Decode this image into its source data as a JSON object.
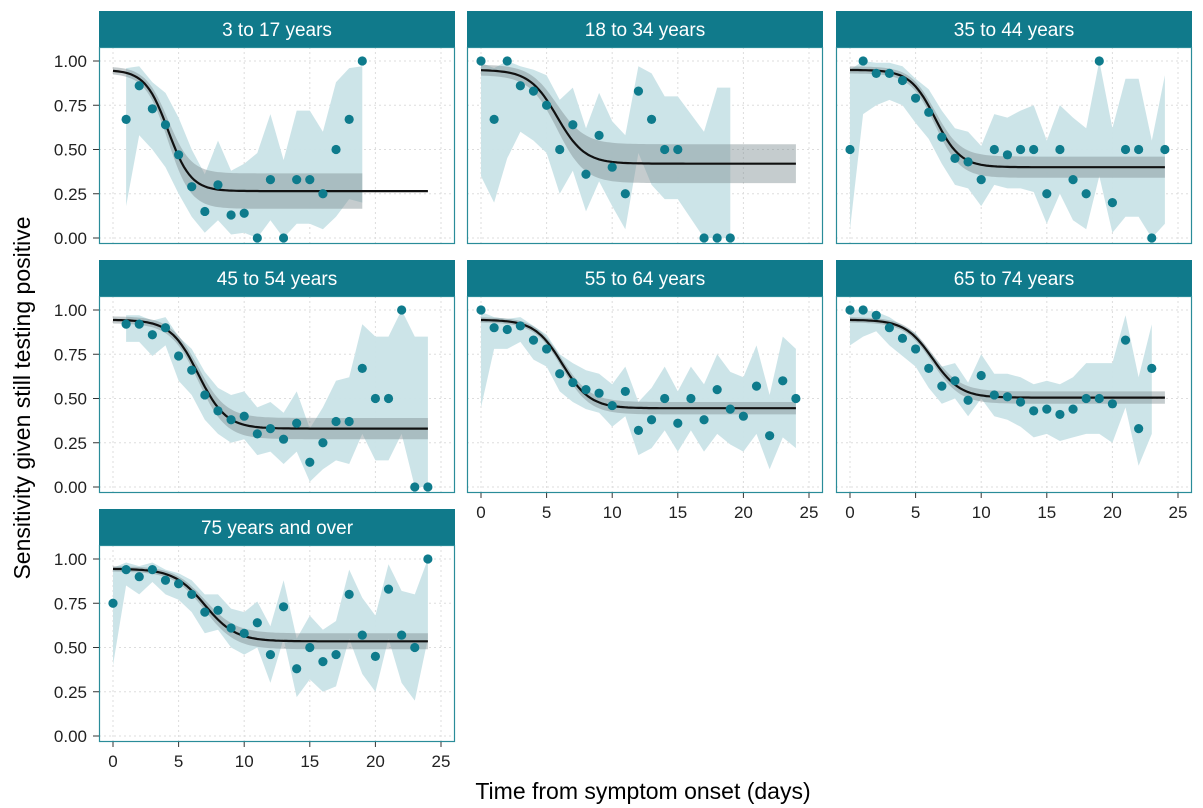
{
  "chart_data": {
    "type": "scatter",
    "title": "",
    "xlabel": "Time from symptom onset (days)",
    "ylabel": "Sensitivity given still testing positive",
    "xlim": [
      0,
      25
    ],
    "ylim": [
      0,
      1
    ],
    "x_ticks": [
      "0",
      "5",
      "10",
      "15",
      "20",
      "25"
    ],
    "y_ticks": [
      "0.00",
      "0.25",
      "0.50",
      "0.75",
      "1.00"
    ],
    "grid": true,
    "colors": {
      "points": "#0e7b8c",
      "band": "#c9e3e7",
      "fit_ci": "#7f8f92",
      "line": "#111111",
      "strip_fill": "#107a8b",
      "panel_border": "#2a8c99",
      "grid": "#dddddd"
    },
    "panels": [
      {
        "label": "3 to 17 years",
        "x": [
          1,
          2,
          3,
          4,
          5,
          6,
          7,
          8,
          9,
          10,
          11,
          12,
          13,
          14,
          15,
          16,
          17,
          18,
          19
        ],
        "y": [
          0.67,
          0.86,
          0.73,
          0.64,
          0.47,
          0.29,
          0.15,
          0.3,
          0.13,
          0.14,
          0,
          0.33,
          0,
          0.33,
          0.33,
          0.25,
          0.5,
          0.67,
          1.0
        ],
        "band_low": [
          0.18,
          0.58,
          0.5,
          0.4,
          0.25,
          0.12,
          0.03,
          0.1,
          0.02,
          0.03,
          0,
          0.1,
          0,
          0.08,
          0.08,
          0.05,
          0.12,
          0.22,
          0.2
        ],
        "band_high": [
          0.96,
          0.97,
          0.88,
          0.82,
          0.68,
          0.5,
          0.36,
          0.55,
          0.38,
          0.42,
          0.48,
          0.7,
          0.44,
          0.72,
          0.72,
          0.6,
          0.88,
          0.96,
          0.97
        ],
        "fit": {
          "upper": 0.95,
          "lower": 0.265,
          "midpoint": 4.2,
          "steepness": 1.15,
          "x_end": 24
        },
        "fit_ci": {
          "upper_hw": 0.02,
          "lower_hw": 0.1,
          "x_end": 19
        }
      },
      {
        "label": "18 to 34 years",
        "x": [
          0,
          1,
          2,
          3,
          4,
          5,
          6,
          7,
          8,
          9,
          10,
          11,
          12,
          13,
          14,
          15,
          17,
          18,
          19
        ],
        "y": [
          1.0,
          0.67,
          1.0,
          0.86,
          0.83,
          0.75,
          0.5,
          0.64,
          0.36,
          0.58,
          0.4,
          0.25,
          0.83,
          0.67,
          0.5,
          0.5,
          0,
          0,
          0
        ],
        "band_low": [
          0.35,
          0.2,
          0.45,
          0.6,
          0.55,
          0.48,
          0.25,
          0.38,
          0.15,
          0.32,
          0.18,
          0.05,
          0.48,
          0.3,
          0.22,
          0.22,
          0,
          0,
          0
        ],
        "band_high": [
          0.99,
          0.96,
          1.0,
          0.97,
          0.95,
          0.92,
          0.78,
          0.85,
          0.62,
          0.82,
          0.66,
          0.58,
          0.97,
          0.93,
          0.8,
          0.8,
          0.6,
          0.85,
          0.85
        ],
        "fit": {
          "upper": 0.95,
          "lower": 0.42,
          "midpoint": 5.8,
          "steepness": 0.95,
          "x_end": 24
        },
        "fit_ci": {
          "upper_hw": 0.03,
          "lower_hw": 0.11,
          "x_end": 24
        }
      },
      {
        "label": "35 to 44 years",
        "x": [
          0,
          1,
          2,
          3,
          4,
          5,
          6,
          7,
          8,
          9,
          10,
          11,
          12,
          13,
          14,
          15,
          16,
          17,
          18,
          19,
          20,
          21,
          22,
          23,
          24
        ],
        "y": [
          0.5,
          1.0,
          0.93,
          0.93,
          0.89,
          0.79,
          0.71,
          0.57,
          0.45,
          0.43,
          0.33,
          0.5,
          0.47,
          0.5,
          0.5,
          0.25,
          0.5,
          0.33,
          0.25,
          1.0,
          0.2,
          0.5,
          0.5,
          0,
          0.5
        ],
        "band_low": [
          0.05,
          0.7,
          0.75,
          0.78,
          0.75,
          0.65,
          0.56,
          0.42,
          0.3,
          0.28,
          0.18,
          0.3,
          0.28,
          0.28,
          0.26,
          0.08,
          0.25,
          0.1,
          0.05,
          0.35,
          0.03,
          0.12,
          0.12,
          0,
          0.08
        ],
        "band_high": [
          0.95,
          1.0,
          0.99,
          0.99,
          0.97,
          0.9,
          0.84,
          0.72,
          0.62,
          0.6,
          0.52,
          0.7,
          0.68,
          0.72,
          0.75,
          0.55,
          0.75,
          0.68,
          0.62,
          1.0,
          0.62,
          0.9,
          0.9,
          0.55,
          0.92
        ],
        "fit": {
          "upper": 0.95,
          "lower": 0.4,
          "midpoint": 6.5,
          "steepness": 1.05,
          "x_end": 24
        },
        "fit_ci": {
          "upper_hw": 0.02,
          "lower_hw": 0.06,
          "x_end": 24
        }
      },
      {
        "label": "45 to 54 years",
        "x": [
          1,
          2,
          3,
          4,
          5,
          6,
          7,
          8,
          9,
          10,
          11,
          12,
          13,
          14,
          15,
          16,
          17,
          18,
          19,
          20,
          21,
          22,
          23,
          24
        ],
        "y": [
          0.92,
          0.92,
          0.86,
          0.9,
          0.74,
          0.66,
          0.52,
          0.43,
          0.38,
          0.4,
          0.3,
          0.33,
          0.27,
          0.36,
          0.14,
          0.25,
          0.37,
          0.37,
          0.67,
          0.5,
          0.5,
          1.0,
          0,
          0
        ],
        "band_low": [
          0.82,
          0.82,
          0.74,
          0.8,
          0.6,
          0.52,
          0.38,
          0.3,
          0.25,
          0.27,
          0.18,
          0.2,
          0.13,
          0.2,
          0.03,
          0.1,
          0.15,
          0.13,
          0.3,
          0.15,
          0.15,
          0.3,
          0,
          0
        ],
        "band_high": [
          0.97,
          0.97,
          0.94,
          0.96,
          0.85,
          0.78,
          0.65,
          0.56,
          0.52,
          0.54,
          0.45,
          0.48,
          0.42,
          0.54,
          0.33,
          0.45,
          0.6,
          0.62,
          0.92,
          0.85,
          0.85,
          1.0,
          0.85,
          0.85
        ],
        "fit": {
          "upper": 0.945,
          "lower": 0.33,
          "midpoint": 6.5,
          "steepness": 0.95,
          "x_end": 24
        },
        "fit_ci": {
          "upper_hw": 0.02,
          "lower_hw": 0.06,
          "x_end": 24
        }
      },
      {
        "label": "55 to 64 years",
        "x": [
          0,
          1,
          2,
          3,
          4,
          5,
          6,
          7,
          8,
          9,
          10,
          11,
          12,
          13,
          14,
          15,
          16,
          17,
          18,
          19,
          20,
          21,
          22,
          23,
          24
        ],
        "y": [
          1.0,
          0.9,
          0.89,
          0.91,
          0.83,
          0.78,
          0.64,
          0.59,
          0.55,
          0.53,
          0.46,
          0.54,
          0.32,
          0.38,
          0.5,
          0.36,
          0.5,
          0.38,
          0.55,
          0.44,
          0.4,
          0.57,
          0.29,
          0.6,
          0.5
        ],
        "band_low": [
          0.45,
          0.78,
          0.78,
          0.82,
          0.72,
          0.68,
          0.54,
          0.48,
          0.44,
          0.42,
          0.34,
          0.4,
          0.18,
          0.22,
          0.32,
          0.2,
          0.32,
          0.2,
          0.3,
          0.24,
          0.2,
          0.3,
          0.1,
          0.28,
          0.22
        ],
        "band_high": [
          0.99,
          0.96,
          0.95,
          0.96,
          0.91,
          0.86,
          0.75,
          0.7,
          0.66,
          0.64,
          0.58,
          0.68,
          0.48,
          0.56,
          0.68,
          0.54,
          0.68,
          0.58,
          0.75,
          0.65,
          0.62,
          0.8,
          0.52,
          0.85,
          0.78
        ],
        "fit": {
          "upper": 0.945,
          "lower": 0.445,
          "midpoint": 6.2,
          "steepness": 0.95,
          "x_end": 24
        },
        "fit_ci": {
          "upper_hw": 0.015,
          "lower_hw": 0.035,
          "x_end": 24
        }
      },
      {
        "label": "65 to 74 years",
        "x": [
          0,
          1,
          2,
          3,
          4,
          5,
          6,
          7,
          8,
          9,
          10,
          11,
          12,
          13,
          14,
          15,
          16,
          17,
          18,
          19,
          20,
          21,
          22,
          23
        ],
        "y": [
          1.0,
          1.0,
          0.97,
          0.9,
          0.84,
          0.78,
          0.67,
          0.57,
          0.6,
          0.49,
          0.63,
          0.52,
          0.51,
          0.48,
          0.43,
          0.44,
          0.41,
          0.44,
          0.5,
          0.5,
          0.47,
          0.83,
          0.33,
          0.67
        ],
        "band_low": [
          0.8,
          0.85,
          0.88,
          0.8,
          0.74,
          0.68,
          0.56,
          0.47,
          0.5,
          0.4,
          0.5,
          0.4,
          0.38,
          0.34,
          0.28,
          0.3,
          0.26,
          0.28,
          0.3,
          0.3,
          0.25,
          0.45,
          0.12,
          0.3
        ],
        "band_high": [
          1.0,
          1.0,
          0.99,
          0.96,
          0.91,
          0.87,
          0.77,
          0.68,
          0.7,
          0.59,
          0.75,
          0.64,
          0.64,
          0.62,
          0.58,
          0.6,
          0.58,
          0.62,
          0.7,
          0.7,
          0.7,
          0.97,
          0.62,
          0.92
        ],
        "fit": {
          "upper": 0.945,
          "lower": 0.505,
          "midpoint": 6.3,
          "steepness": 0.95,
          "x_end": 24
        },
        "fit_ci": {
          "upper_hw": 0.015,
          "lower_hw": 0.035,
          "x_end": 24
        }
      },
      {
        "label": "75 years and over",
        "x": [
          0,
          1,
          2,
          3,
          4,
          5,
          6,
          7,
          8,
          9,
          10,
          11,
          12,
          13,
          14,
          15,
          16,
          17,
          18,
          19,
          20,
          21,
          22,
          23,
          24
        ],
        "y": [
          0.75,
          0.94,
          0.9,
          0.94,
          0.88,
          0.86,
          0.8,
          0.7,
          0.71,
          0.61,
          0.58,
          0.64,
          0.46,
          0.73,
          0.38,
          0.5,
          0.42,
          0.46,
          0.8,
          0.57,
          0.45,
          0.83,
          0.57,
          0.5,
          1.0
        ],
        "band_low": [
          0.4,
          0.85,
          0.8,
          0.87,
          0.8,
          0.77,
          0.7,
          0.58,
          0.6,
          0.5,
          0.46,
          0.5,
          0.3,
          0.55,
          0.22,
          0.32,
          0.25,
          0.28,
          0.55,
          0.35,
          0.25,
          0.55,
          0.3,
          0.2,
          0.55
        ],
        "band_high": [
          0.95,
          0.98,
          0.96,
          0.98,
          0.94,
          0.92,
          0.88,
          0.8,
          0.8,
          0.72,
          0.7,
          0.76,
          0.62,
          0.88,
          0.55,
          0.68,
          0.6,
          0.65,
          0.94,
          0.78,
          0.68,
          0.97,
          0.82,
          0.8,
          1.0
        ],
        "fit": {
          "upper": 0.945,
          "lower": 0.535,
          "midpoint": 7.0,
          "steepness": 0.85,
          "x_end": 24
        },
        "fit_ci": {
          "upper_hw": 0.015,
          "lower_hw": 0.045,
          "x_end": 24
        }
      }
    ]
  }
}
